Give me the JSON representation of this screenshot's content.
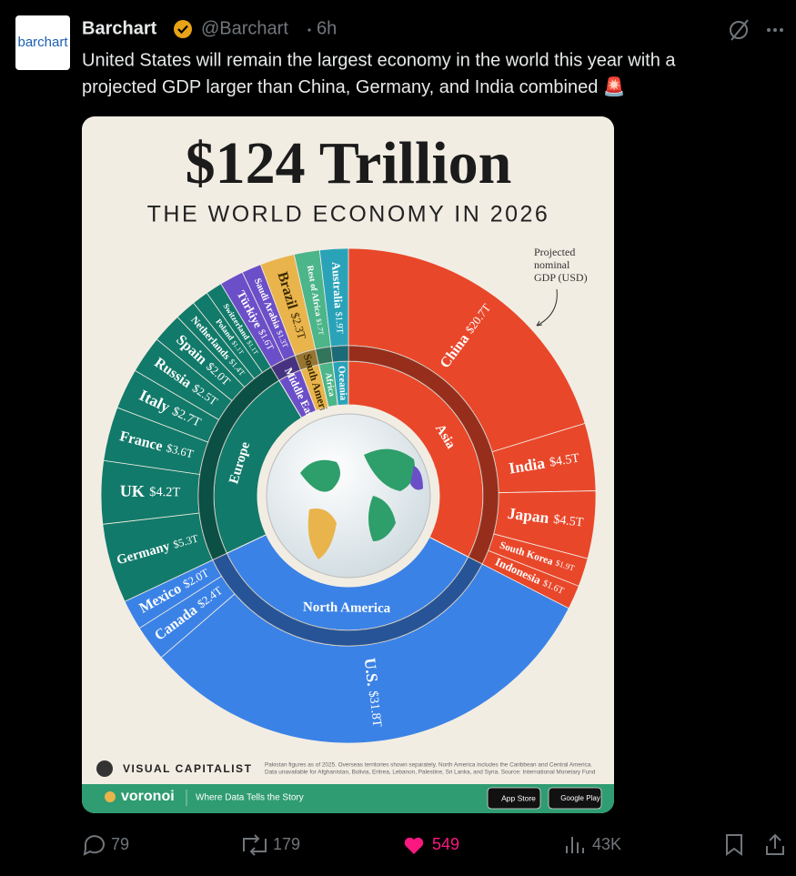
{
  "tweet": {
    "avatar_text": "barchart",
    "author": "Barchart",
    "handle": "@Barchart",
    "time": "6h",
    "text_lines": [
      "United States will remain the largest economy in the world this year with a",
      "projected GDP larger than China, Germany, and India combined"
    ],
    "emoji": "🚨"
  },
  "image": {
    "title": "$124 Trillion",
    "subtitle": "THE WORLD ECONOMY IN 2026",
    "annotation_lines": [
      "Projected",
      "nominal",
      "GDP (USD)"
    ],
    "brand": "VISUAL CAPITALIST",
    "footnote_lines": [
      "Pakistan figures as of 2025. Overseas territories shown separately. North America includes the Caribbean and Central America.",
      "Data unavailable for Afghanistan, Bolivia, Eritrea, Lebanon, Palestine, Sri Lanka, and Syria. Source: International Monetary Fund"
    ],
    "footer_brand": "voronoi",
    "tagline": "Where Data Tells the Story",
    "store_buttons": [
      "App Store",
      "Google Play"
    ]
  },
  "chart_data": {
    "type": "sunburst",
    "regions": [
      {
        "name": "Asia",
        "color": "#e9472a",
        "countries": [
          "China",
          "India",
          "Japan",
          "South Korea",
          "Indonesia"
        ],
        "values": [
          20.7,
          4.5,
          4.5,
          1.9,
          1.6
        ],
        "value_labels": [
          "$20.7T",
          "$4.5T",
          "$4.5T",
          "$1.9T",
          "$1.6T"
        ]
      },
      {
        "name": "North America",
        "color": "#3b82e6",
        "countries": [
          "U.S.",
          "Canada",
          "Mexico"
        ],
        "values": [
          31.8,
          2.4,
          2.0
        ],
        "value_labels": [
          "$31.8T",
          "$2.4T",
          "$2.0T"
        ]
      },
      {
        "name": "Europe",
        "color": "#127a6a",
        "countries": [
          "Germany",
          "UK",
          "France",
          "Italy",
          "Russia",
          "Spain",
          "Netherlands",
          "Poland",
          "Switzerland"
        ],
        "values": [
          5.3,
          4.2,
          3.6,
          2.7,
          2.5,
          2.0,
          1.4,
          1.1,
          1.1
        ],
        "value_labels": [
          "$5.3T",
          "$4.2T",
          "$3.6T",
          "$2.7T",
          "$2.5T",
          "$2.0T",
          "$1.4T",
          "$1.1T",
          "$1.1T"
        ]
      },
      {
        "name": "Middle East",
        "color": "#6b4fc8",
        "countries": [
          "Türkiye",
          "Saudi Arabia"
        ],
        "values": [
          1.6,
          1.3
        ],
        "value_labels": [
          "$1.6T",
          "$1.3T"
        ]
      },
      {
        "name": "South America",
        "color": "#e9b44c",
        "countries": [
          "Brazil"
        ],
        "values": [
          2.3
        ],
        "value_labels": [
          "$2.3T"
        ]
      },
      {
        "name": "Africa",
        "color": "#4cb58a",
        "countries": [
          "Rest of Africa"
        ],
        "values": [
          1.7
        ],
        "value_labels": [
          "$1.7T"
        ]
      },
      {
        "name": "Oceania",
        "color": "#2aa3b9",
        "countries": [
          "Australia"
        ],
        "values": [
          1.9
        ],
        "value_labels": [
          "$1.9T"
        ]
      }
    ]
  },
  "actions": {
    "replies": "79",
    "reposts": "179",
    "likes": "549",
    "views": "43K"
  }
}
